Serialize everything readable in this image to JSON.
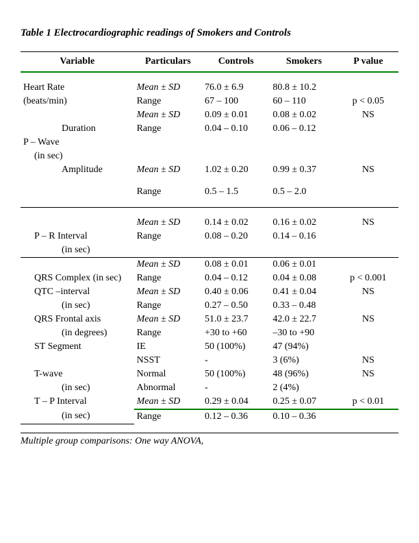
{
  "title": "Table 1   Electrocardiographic readings of Smokers and Controls",
  "footnote": "Multiple group comparisons: One way ANOVA,",
  "headers": {
    "variable": "Variable",
    "particulars": "Particulars",
    "controls": "Controls",
    "smokers": "Smokers",
    "pvalue": "P value"
  },
  "labels": {
    "mean_sd": "Mean ± SD",
    "range": "Range"
  },
  "sections": {
    "heart_rate": {
      "label": "Heart Rate",
      "unit": "(beats/min)",
      "mean_controls": "76.0 ± 6.9",
      "mean_smokers": "80.8 ± 10.2",
      "range_controls": "67 – 100",
      "range_smokers": "60 – 110",
      "pvalue": "p < 0.05"
    },
    "pwave": {
      "label": "P – Wave",
      "unit": "(in sec)",
      "duration": {
        "label": "Duration",
        "mean_controls": "0.09 ± 0.01",
        "mean_smokers": "0.08 ± 0.02",
        "range_controls": "0.04 – 0.10",
        "range_smokers": "0.06 – 0.12",
        "pvalue": "NS"
      },
      "amplitude": {
        "label": "Amplitude",
        "mean_controls": "1.02 ± 0.20",
        "mean_smokers": "0.99 ± 0.37",
        "range_controls": "0.5 – 1.5",
        "range_smokers": "0.5 – 2.0",
        "pvalue": "NS"
      }
    },
    "pr_interval": {
      "label": "P – R   Interval",
      "unit": "(in sec)",
      "mean_controls": "0.14 ± 0.02",
      "mean_smokers": "0.16 ± 0.02",
      "range_controls": "0.08 – 0.20",
      "range_smokers": "0.14 – 0.16",
      "pvalue": "NS"
    },
    "qrs_complex": {
      "label": "QRS Complex (in sec)",
      "mean_controls": "0.08 ± 0.01",
      "mean_smokers": "0.06 ± 0.01",
      "range_controls": "0.04 – 0.12",
      "range_smokers": "0.04 ± 0.08",
      "pvalue": "p < 0.001"
    },
    "qtc": {
      "label": "QTC –interval",
      "unit": "(in sec)",
      "mean_controls": "0.40 ± 0.06",
      "mean_smokers": "0.41 ± 0.04",
      "range_controls": "0.27 – 0.50",
      "range_smokers": "0.33 – 0.48",
      "pvalue": "NS"
    },
    "qrs_frontal": {
      "label": "QRS Frontal axis",
      "unit": "(in degrees)",
      "mean_controls": "51.0 ± 23.7",
      "mean_smokers": "42.0 ± 22.7",
      "range_controls": "+30 to +60",
      "range_smokers": "–30 to +90",
      "pvalue": "NS"
    },
    "st_segment": {
      "label": "ST Segment",
      "ie_label": "IE",
      "nsst_label": "NSST",
      "ie_controls": "50 (100%)",
      "ie_smokers": "47 (94%)",
      "nsst_controls": "-",
      "nsst_smokers": "3 (6%)",
      "pvalue": "NS"
    },
    "twave": {
      "label": "T-wave",
      "unit": "(in sec)",
      "normal_label": "Normal",
      "abnormal_label": "Abnormal",
      "normal_controls": "50 (100%)",
      "normal_smokers": "48 (96%)",
      "abnormal_controls": "-",
      "abnormal_smokers": "2 (4%)",
      "pvalue": "NS"
    },
    "tp_interval": {
      "label": "T – P Interval",
      "unit": "(in sec)",
      "mean_controls": "0.29 ± 0.04",
      "mean_smokers": "0.25 ± 0.07",
      "range_controls": "0.12 – 0.36",
      "range_smokers": "0.10 – 0.36",
      "pvalue": "p < 0.01"
    }
  }
}
